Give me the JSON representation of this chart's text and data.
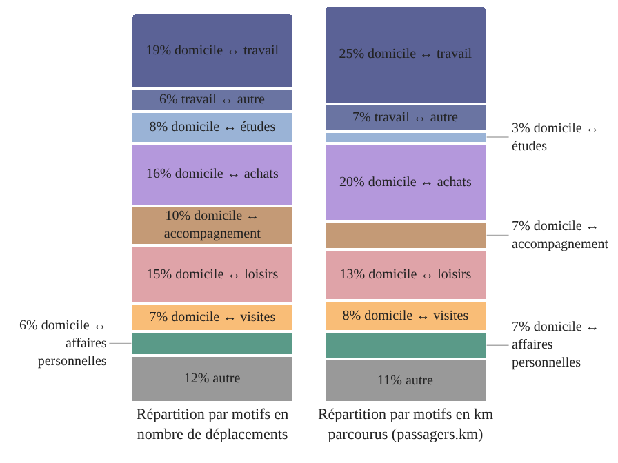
{
  "chart_data": {
    "type": "bar",
    "stacked": true,
    "categories": [
      "Répartition par motifs en nombre de déplacements",
      "Répartition par motifs en km parcourus (passagers.km)"
    ],
    "series": [
      {
        "color": "#999999",
        "values": [
          12,
          11
        ],
        "value_labels": [
          "12% autre",
          "11% autre"
        ]
      },
      {
        "color": "#5a9a88",
        "values": [
          6,
          7
        ],
        "value_labels": [
          "6% domicile ↔ affaires personnelles",
          "7% domicile ↔ affaires personnelles"
        ]
      },
      {
        "color": "#f9bd77",
        "values": [
          7,
          8
        ],
        "value_labels": [
          "7% domicile ↔ visites",
          "8% domicile ↔ visites"
        ]
      },
      {
        "color": "#dfa3a8",
        "values": [
          15,
          13
        ],
        "value_labels": [
          "15% domicile ↔ loisirs",
          "13% domicile ↔ loisirs"
        ]
      },
      {
        "color": "#c49a76",
        "values": [
          10,
          7
        ],
        "value_labels": [
          "10% domicile ↔ accompagnement",
          "7% domicile ↔ accompagnement"
        ]
      },
      {
        "color": "#b498dc",
        "values": [
          16,
          20
        ],
        "value_labels": [
          "16% domicile ↔ achats",
          "20% domicile ↔ achats"
        ]
      },
      {
        "color": "#9ab3d6",
        "values": [
          8,
          3
        ],
        "value_labels": [
          "8% domicile ↔ études",
          "3% domicile ↔ études"
        ]
      },
      {
        "color": "#6a74a2",
        "values": [
          6,
          7
        ],
        "value_labels": [
          "6% travail ↔ autre",
          "7% travail ↔ autre"
        ]
      },
      {
        "color": "#5b6296",
        "values": [
          19,
          25
        ],
        "value_labels": [
          "19% domicile ↔ travail",
          "25% domicile ↔ travail"
        ]
      }
    ]
  }
}
